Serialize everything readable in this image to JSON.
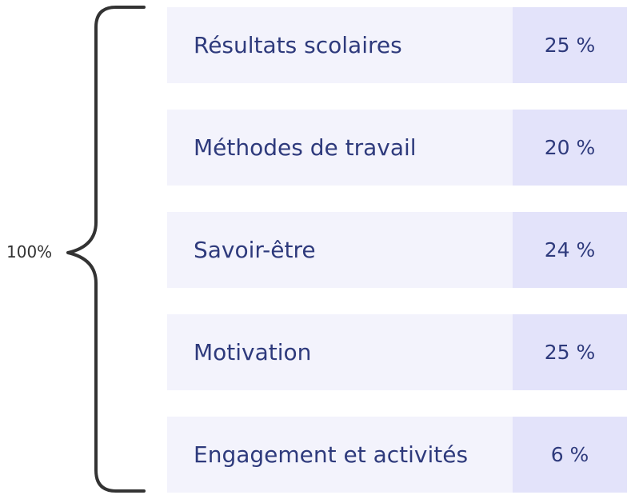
{
  "total": "100%",
  "rows": [
    {
      "label": "Résultats scolaires",
      "value": "25 %"
    },
    {
      "label": "Méthodes de travail",
      "value": "20 %"
    },
    {
      "label": "Savoir-être",
      "value": "24 %"
    },
    {
      "label": "Motivation",
      "value": "25 %"
    },
    {
      "label": "Engagement et activités",
      "value": "6 %"
    }
  ],
  "colors": {
    "label_bg": "#f3f3fc",
    "value_bg": "#e3e3fa",
    "text": "#2e3a7c",
    "brace": "#333333"
  }
}
